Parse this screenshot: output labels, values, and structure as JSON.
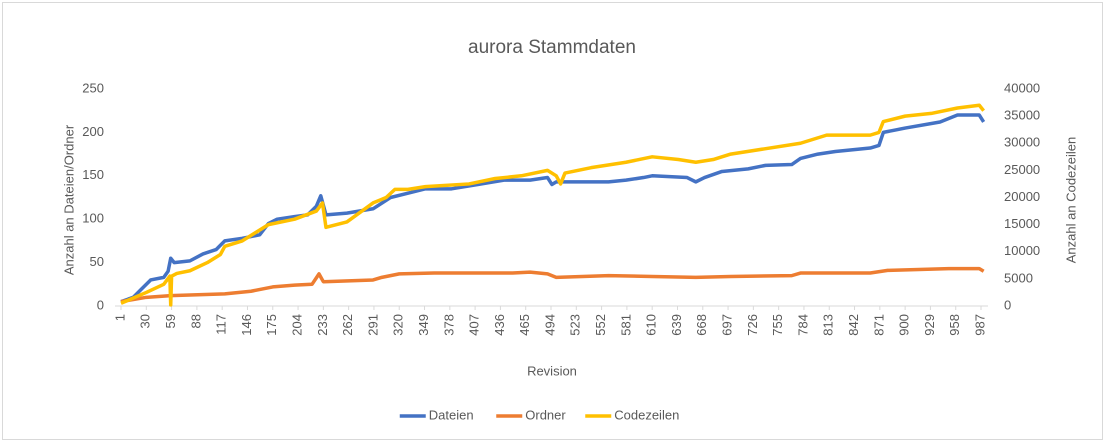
{
  "chart_data": {
    "type": "line",
    "title": "aurora Stammdaten",
    "x_label": "Revision",
    "y_label": "Anzahl an Dateien/Ordner",
    "y2_label": "Anzahl an Codezeilen",
    "xlim": [
      1,
      995
    ],
    "xticks": [
      1,
      30,
      59,
      88,
      117,
      146,
      175,
      204,
      233,
      262,
      291,
      320,
      349,
      378,
      407,
      436,
      465,
      494,
      523,
      552,
      581,
      610,
      639,
      668,
      697,
      726,
      755,
      784,
      813,
      842,
      871,
      900,
      929,
      958,
      987
    ],
    "ylim": [
      0,
      250
    ],
    "yticks": [
      0,
      50,
      100,
      150,
      200,
      250
    ],
    "y2lim": [
      0,
      40000
    ],
    "y2ticks": [
      0,
      5000,
      10000,
      15000,
      20000,
      25000,
      30000,
      35000,
      40000
    ],
    "grid": false,
    "legend": "bottom",
    "series": [
      {
        "name": "Dateien",
        "color": "#4472c4",
        "x": [
          1,
          15,
          25,
          35,
          50,
          55,
          58,
          62,
          80,
          95,
          110,
          120,
          140,
          160,
          170,
          180,
          200,
          215,
          225,
          230,
          236,
          260,
          290,
          310,
          330,
          350,
          380,
          410,
          440,
          470,
          490,
          495,
          500,
          560,
          580,
          600,
          610,
          650,
          660,
          670,
          690,
          720,
          740,
          770,
          780,
          800,
          820,
          840,
          860,
          870,
          875,
          890,
          900,
          940,
          960,
          985,
          990
        ],
        "values": [
          5,
          10,
          20,
          30,
          33,
          40,
          55,
          50,
          52,
          60,
          65,
          75,
          78,
          82,
          95,
          100,
          103,
          105,
          115,
          127,
          105,
          107,
          112,
          125,
          130,
          135,
          135,
          140,
          145,
          145,
          148,
          140,
          143,
          143,
          145,
          148,
          150,
          148,
          143,
          148,
          155,
          158,
          162,
          163,
          170,
          175,
          178,
          180,
          182,
          185,
          200,
          203,
          205,
          212,
          220,
          220,
          212
        ]
      },
      {
        "name": "Ordner",
        "color": "#ed7d31",
        "x": [
          1,
          30,
          58,
          120,
          150,
          175,
          200,
          220,
          228,
          233,
          290,
          300,
          320,
          360,
          450,
          470,
          490,
          500,
          560,
          610,
          660,
          700,
          770,
          780,
          860,
          880,
          950,
          985,
          990
        ],
        "values": [
          5,
          10,
          12,
          14,
          17,
          22,
          24,
          25,
          37,
          28,
          30,
          33,
          37,
          38,
          38,
          39,
          37,
          33,
          35,
          34,
          33,
          34,
          35,
          38,
          38,
          41,
          43,
          43,
          40
        ]
      },
      {
        "name": "Codezeilen",
        "color": "#ffc000",
        "axis": "y2",
        "x": [
          1,
          30,
          50,
          57,
          58,
          59,
          65,
          80,
          100,
          115,
          120,
          140,
          170,
          200,
          225,
          232,
          236,
          260,
          290,
          305,
          315,
          330,
          350,
          400,
          430,
          460,
          490,
          500,
          505,
          510,
          540,
          580,
          610,
          640,
          660,
          680,
          700,
          740,
          780,
          810,
          840,
          860,
          870,
          875,
          900,
          930,
          960,
          985,
          990
        ],
        "values": [
          500,
          2500,
          4000,
          5500,
          200,
          5500,
          6000,
          6500,
          8000,
          9500,
          11000,
          12000,
          15000,
          16000,
          17500,
          19000,
          14500,
          15500,
          19000,
          20000,
          21500,
          21500,
          22000,
          22500,
          23500,
          24000,
          25000,
          24000,
          22500,
          24500,
          25500,
          26500,
          27500,
          27000,
          26500,
          27000,
          28000,
          29000,
          30000,
          31500,
          31500,
          31500,
          32000,
          34000,
          35000,
          35500,
          36500,
          37000,
          36000
        ]
      }
    ]
  }
}
